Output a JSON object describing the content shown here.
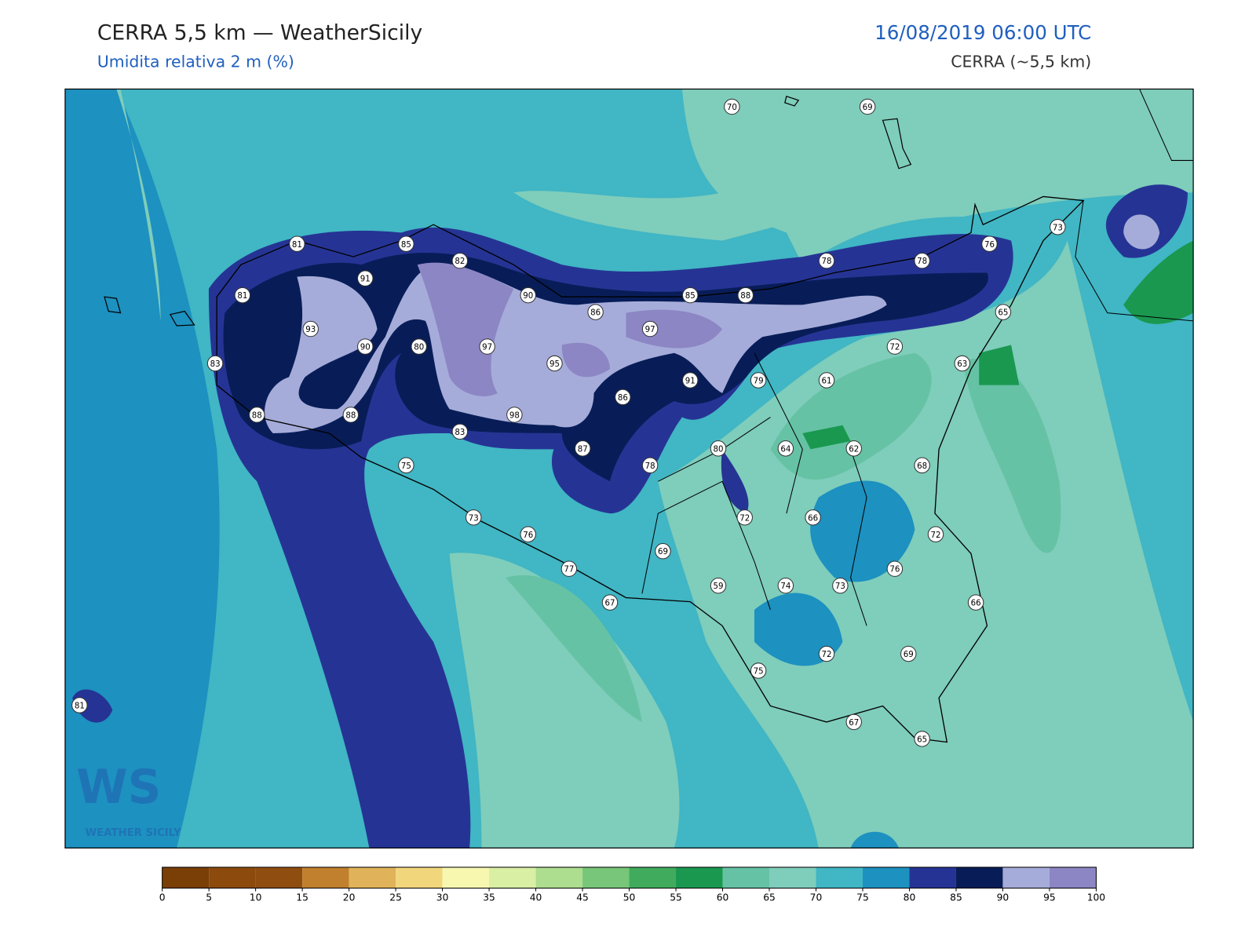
{
  "header": {
    "title": "CERRA 5,5 km — WeatherSicily",
    "subtitle": "Umidita relativa 2 m (%)",
    "datetime": "16/08/2019 06:00 UTC",
    "model": "CERRA (~5,5 km)"
  },
  "stations": [
    70,
    69,
    81,
    85,
    82,
    91,
    81,
    90,
    86,
    85,
    88,
    78,
    78,
    76,
    73,
    93,
    97,
    65,
    90,
    80,
    97,
    72,
    83,
    95,
    63,
    91,
    79,
    61,
    86,
    88,
    88,
    98,
    83,
    87,
    80,
    64,
    62,
    78,
    68,
    75,
    73,
    76,
    72,
    66,
    72,
    69,
    77,
    76,
    59,
    74,
    73,
    66,
    67,
    72,
    69,
    75,
    67,
    65,
    81
  ],
  "logo": {
    "mark": "WS",
    "text": "WEATHER SICILY"
  },
  "colorbar": {
    "ticks": [
      0,
      5,
      10,
      15,
      20,
      25,
      30,
      35,
      40,
      45,
      50,
      55,
      60,
      65,
      70,
      75,
      80,
      85,
      90,
      95,
      100
    ],
    "colors": [
      "#7a3f07",
      "#8c4a0c",
      "#8f4d10",
      "#c0802e",
      "#e0b25a",
      "#f2d67c",
      "#f7f7b0",
      "#d9efa4",
      "#addd8e",
      "#78c679",
      "#41ab5d",
      "#1a9850",
      "#66c2a4",
      "#7fcdbb",
      "#41b6c4",
      "#1d91c0",
      "#253494",
      "#081d58",
      "#a6acd9",
      "#8c86c4"
    ]
  }
}
